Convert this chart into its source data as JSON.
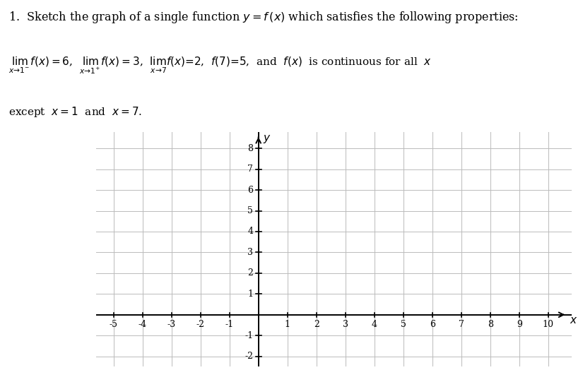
{
  "xmin": -5,
  "xmax": 10,
  "ymin": -2,
  "ymax": 8,
  "xticks": [
    -5,
    -4,
    -3,
    -2,
    -1,
    1,
    2,
    3,
    4,
    5,
    6,
    7,
    8,
    9,
    10
  ],
  "yticks": [
    -2,
    -1,
    1,
    2,
    3,
    4,
    5,
    6,
    7,
    8
  ],
  "grid_color": "#bbbbbb",
  "axis_color": "#000000",
  "background_color": "#ffffff",
  "text_color": "#000000",
  "line1": "1.  Sketch the graph of a single function $y = f\\,(x)$ which satisfies the following properties:",
  "line2": "$\\lim_{x\\to 1^-} f(x)=6$,  $\\lim_{x\\to 1^+} f(x)=3$,  $\\lim_{x\\to 7} f(x)=2$,  $f(7)=5$,  and  $f(x)$  is continuous for all  $x$",
  "line3": "except  $x=1$  and  $x=7$.",
  "font_size_line1": 11.5,
  "font_size_line23": 11.0,
  "axis_label_x": "$x$",
  "axis_label_y": "$y$"
}
